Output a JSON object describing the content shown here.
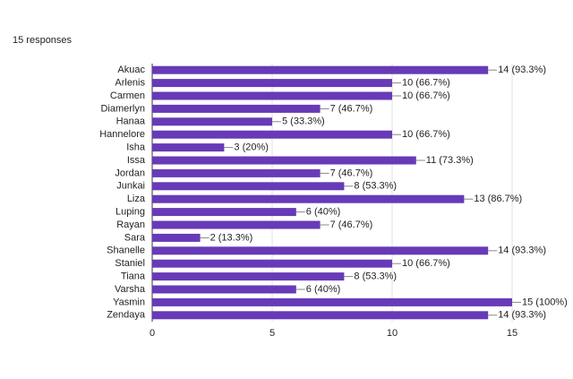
{
  "chart_data": {
    "type": "bar",
    "orientation": "horizontal",
    "subtitle": "15 responses",
    "categories": [
      "Akuac",
      "Arlenis",
      "Carmen",
      "Diamerlyn",
      "Hanaa",
      "Hannelore",
      "Isha",
      "Issa",
      "Jordan",
      "Junkai",
      "Liza",
      "Luping",
      "Rayan",
      "Sara",
      "Shanelle",
      "Staniel",
      "Tiana",
      "Varsha",
      "Yasmin",
      "Zendaya"
    ],
    "values": [
      14,
      10,
      10,
      7,
      5,
      10,
      3,
      11,
      7,
      8,
      13,
      6,
      7,
      2,
      14,
      10,
      8,
      6,
      15,
      14
    ],
    "value_labels": [
      "14 (93.3%)",
      "10 (66.7%)",
      "10 (66.7%)",
      "7 (46.7%)",
      "5 (33.3%)",
      "10 (66.7%)",
      "3 (20%)",
      "11 (73.3%)",
      "7 (46.7%)",
      "8 (53.3%)",
      "13 (86.7%)",
      "6 (40%)",
      "7 (46.7%)",
      "2 (13.3%)",
      "14 (93.3%)",
      "10 (66.7%)",
      "8 (53.3%)",
      "6 (40%)",
      "15 (100%)",
      "14 (93.3%)"
    ],
    "color": "#673ab7",
    "xlim": [
      0,
      15
    ],
    "xticks": [
      0,
      5,
      10,
      15
    ],
    "grid": true
  }
}
